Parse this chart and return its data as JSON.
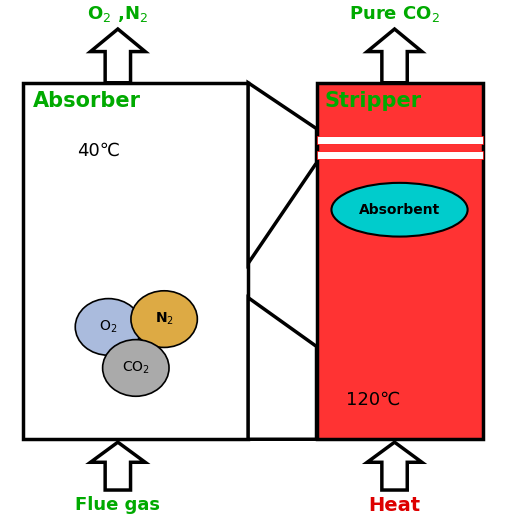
{
  "absorber_label": "Absorber",
  "stripper_label": "Stripper",
  "absorber_temp": "40℃",
  "stripper_temp": "120℃",
  "label_color_green": "#00AA00",
  "label_color_red": "#DD0000",
  "top_left_label": "O₂ ,N₂",
  "top_right_label": "Pure CO₂",
  "bottom_left_label": "Flue gas",
  "bottom_right_label": "Heat",
  "absorbent_label": "Absorbent",
  "stripper_fill_color": "#FF3333",
  "absorbent_ellipse_color": "#00CCCC",
  "o2_color": "#AABBDD",
  "n2_color": "#DDAA44",
  "co2_color": "#AAAAAA",
  "bg_color": "#FFFFFF",
  "lw": 2.5
}
